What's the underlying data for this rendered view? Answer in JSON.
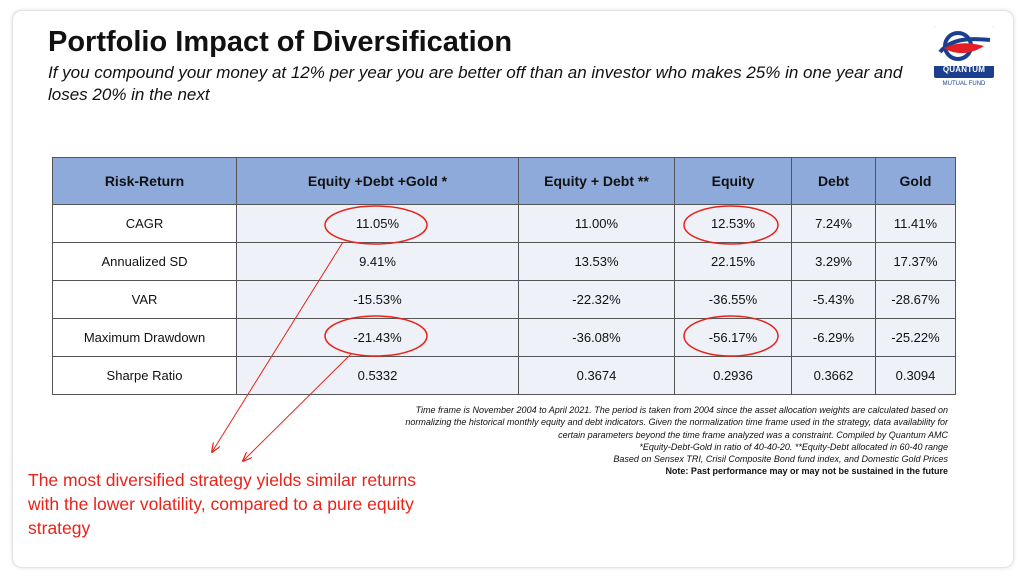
{
  "title": "Portfolio Impact of Diversification",
  "subtitle": "If you compound your money at 12% per year you are better off than an investor who makes 25% in one year and loses 20% in the next",
  "logo": {
    "name": "QUANTUM",
    "tagline": "MUTUAL FUND",
    "colors": {
      "navy": "#1b3f8f",
      "red": "#e31e24"
    }
  },
  "table": {
    "headers": [
      "Risk-Return",
      "Equity +Debt  +Gold *",
      "Equity + Debt **",
      "Equity",
      "Debt",
      "Gold"
    ],
    "rows": [
      [
        "CAGR",
        "11.05%",
        "11.00%",
        "12.53%",
        "7.24%",
        "11.41%"
      ],
      [
        "Annualized SD",
        "9.41%",
        "13.53%",
        "22.15%",
        "3.29%",
        "17.37%"
      ],
      [
        "VAR",
        "-15.53%",
        "-22.32%",
        "-36.55%",
        "-5.43%",
        "-28.67%"
      ],
      [
        "Maximum Drawdown",
        "-21.43%",
        "-36.08%",
        "-56.17%",
        "-6.29%",
        "-25.22%"
      ],
      [
        "Sharpe Ratio",
        "0.5332",
        "0.3674",
        "0.2936",
        "0.3662",
        "0.3094"
      ]
    ]
  },
  "notes": {
    "timeframe": "Time frame is November 2004 to April 2021. The period is taken from 2004 since the asset allocation weights are calculated based on normalizing the historical monthly equity and debt indicators. Given the normalization time frame used in the strategy, data availability for certain parameters beyond the time frame analyzed was a constraint.  Compiled by Quantum AMC",
    "allocation": "*Equity-Debt-Gold in ratio of 40-40-20. **Equity-Debt allocated in  60-40 range",
    "indices": "Based on Sensex TRI, Crisil Composite Bond fund index, and Domestic Gold Prices",
    "disclaimer": "Note: Past performance may or may not be sustained in the future"
  },
  "takeaway": "The most diversified strategy yields similar returns with the lower volatility, compared to a pure equity strategy",
  "colors": {
    "header_fill": "#8eaadb",
    "cell_fill": "#eef1f8",
    "highlight": "#e8231a"
  }
}
